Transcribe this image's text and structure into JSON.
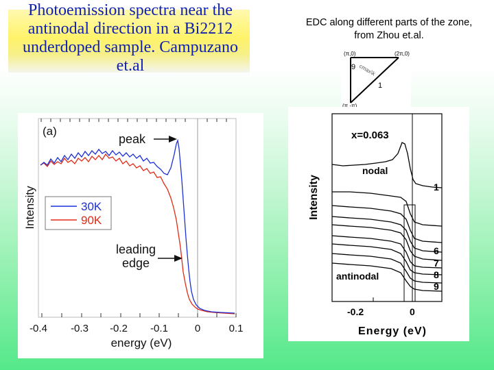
{
  "left_title": "Photoemission spectra near the antinodal direction in a Bi2212 underdoped sample. Campuzano et.al",
  "right_title": "EDC along different parts of the zone, from Zhou  et.al.",
  "left_figure": {
    "panel_label": "(a)",
    "ylabel": "Intensity",
    "xlabel": "energy (eV)",
    "xticks": [
      "-0.4",
      "-0.3",
      "-0.2",
      "-0.1",
      "0",
      "0.1"
    ],
    "legend": [
      {
        "label": "30K",
        "color": "#1a2fd6"
      },
      {
        "label": "90K",
        "color": "#e02a14"
      }
    ],
    "annotations": {
      "peak": "peak",
      "leading_1": "leading",
      "leading_2": "edge"
    }
  },
  "zone_diagram": {
    "corner_tl": "(π,0)",
    "corner_tr": "(2π,0)",
    "corner_bl": "(π,-π)",
    "label_9": "9",
    "label_1": "1",
    "diag_text": "cmax\\k"
  },
  "right_figure": {
    "doping": "x=0.063",
    "nodal": "nodal",
    "antinodal": "antinodal",
    "ylabel": "Intensity",
    "xlabel": "Energy (eV)",
    "xticks": [
      "-0.2",
      "0"
    ],
    "curve_labels": [
      "1",
      "6",
      "7",
      "8",
      "9"
    ]
  }
}
